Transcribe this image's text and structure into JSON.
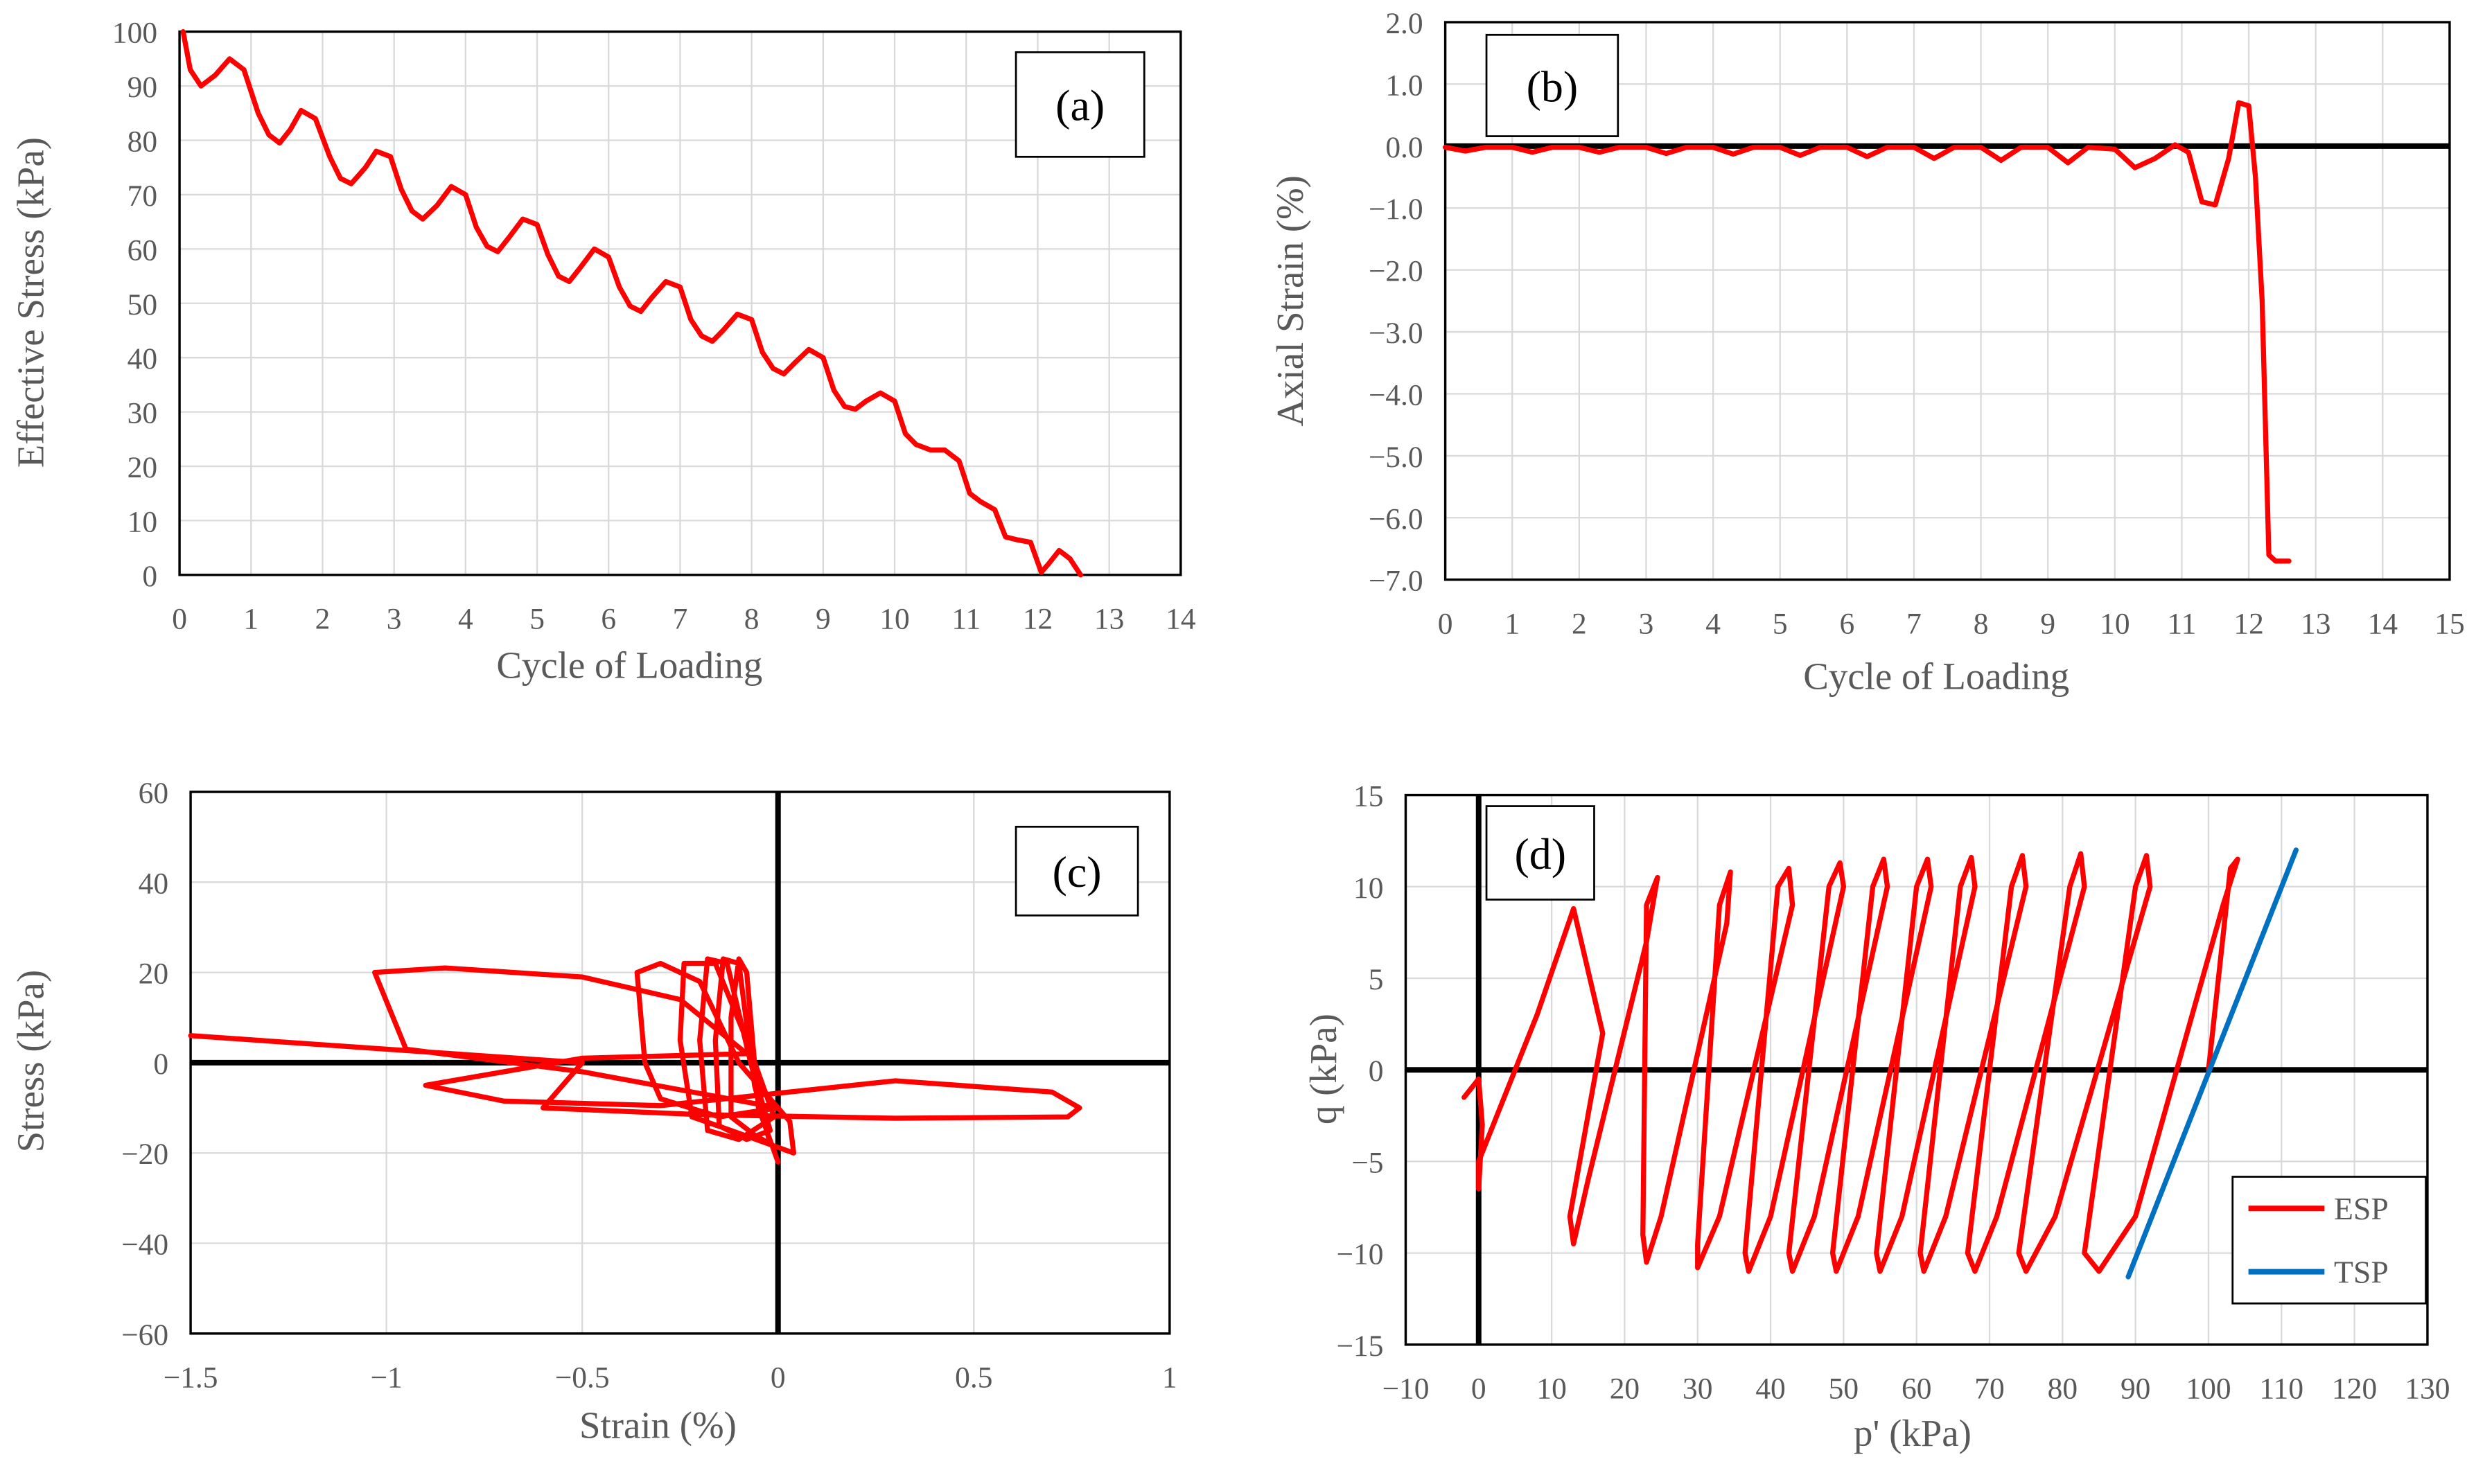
{
  "chart_data": [
    {
      "type": "line",
      "annotation": "(a)",
      "x_label": "Cycle of Loading",
      "y_label": "Effective Stress (kPa)",
      "color": "#ff0000",
      "grid": true,
      "zero_lines": false,
      "xlim": [
        0,
        14
      ],
      "xticks": [
        0,
        1,
        2,
        3,
        4,
        5,
        6,
        7,
        8,
        9,
        10,
        11,
        12,
        13,
        14
      ],
      "ylim": [
        0,
        100
      ],
      "yticks": [
        0,
        10,
        20,
        30,
        40,
        50,
        60,
        70,
        80,
        90,
        100
      ],
      "x": [
        0.05,
        0.15,
        0.3,
        0.5,
        0.7,
        0.9,
        1.1,
        1.25,
        1.4,
        1.55,
        1.7,
        1.9,
        2.1,
        2.25,
        2.4,
        2.6,
        2.75,
        2.95,
        3.1,
        3.25,
        3.4,
        3.6,
        3.8,
        4.0,
        4.15,
        4.3,
        4.45,
        4.6,
        4.8,
        5.0,
        5.15,
        5.3,
        5.45,
        5.6,
        5.8,
        6.0,
        6.15,
        6.3,
        6.45,
        6.6,
        6.8,
        7.0,
        7.15,
        7.3,
        7.45,
        7.6,
        7.8,
        8.0,
        8.15,
        8.3,
        8.45,
        8.6,
        8.8,
        9.0,
        9.15,
        9.3,
        9.45,
        9.6,
        9.8,
        10.0,
        10.15,
        10.3,
        10.5,
        10.7,
        10.9,
        11.05,
        11.2,
        11.4,
        11.55,
        11.7,
        11.9,
        12.05,
        12.15,
        12.3,
        12.45,
        12.6
      ],
      "values": [
        100,
        93,
        90,
        92,
        95,
        93,
        85,
        81,
        79.5,
        82,
        85.5,
        84,
        77,
        73,
        72,
        75,
        78,
        77,
        71,
        67,
        65.5,
        68,
        71.5,
        70,
        64,
        60.5,
        59.5,
        62,
        65.5,
        64.5,
        59,
        55,
        54,
        56.5,
        60,
        58.5,
        53,
        49.5,
        48.5,
        51,
        54,
        53,
        47,
        44,
        43,
        45,
        48,
        47,
        41,
        38,
        37,
        39,
        41.5,
        40,
        34,
        31,
        30.5,
        32,
        33.5,
        32,
        26,
        24,
        23,
        23,
        21,
        15,
        13.5,
        12,
        7,
        6.5,
        6,
        0.5,
        2,
        4.5,
        3,
        0
      ]
    },
    {
      "type": "line",
      "annotation": "(b)",
      "x_label": "Cycle of Loading",
      "y_label": "Axial Strain (%)",
      "color": "#ff0000",
      "grid": true,
      "zero_lines": true,
      "xlim": [
        0,
        15
      ],
      "xticks": [
        0,
        1,
        2,
        3,
        4,
        5,
        6,
        7,
        8,
        9,
        10,
        11,
        12,
        13,
        14,
        15
      ],
      "ylim": [
        -7,
        2
      ],
      "yticks": [
        {
          "value": -7,
          "label": "−7.0"
        },
        {
          "value": -6,
          "label": "−6.0"
        },
        {
          "value": -5,
          "label": "−5.0"
        },
        {
          "value": -4,
          "label": "−4.0"
        },
        {
          "value": -3,
          "label": "−3.0"
        },
        {
          "value": -2,
          "label": "−2.0"
        },
        {
          "value": -1,
          "label": "−1.0"
        },
        {
          "value": 0,
          "label": "0.0"
        },
        {
          "value": 1,
          "label": "1.0"
        },
        {
          "value": 2,
          "label": "2.0"
        }
      ],
      "x": [
        0,
        0.3,
        0.6,
        1.0,
        1.3,
        1.6,
        2.0,
        2.3,
        2.6,
        3.0,
        3.3,
        3.6,
        4.0,
        4.3,
        4.6,
        5.0,
        5.3,
        5.6,
        6.0,
        6.3,
        6.6,
        7.0,
        7.3,
        7.6,
        8.0,
        8.3,
        8.6,
        9.0,
        9.3,
        9.6,
        10.0,
        10.3,
        10.6,
        10.9,
        11.1,
        11.3,
        11.5,
        11.7,
        11.85,
        12.0,
        12.1,
        12.2,
        12.3,
        12.4,
        12.6
      ],
      "values": [
        -0.02,
        -0.08,
        -0.02,
        -0.02,
        -0.1,
        -0.02,
        -0.02,
        -0.1,
        -0.02,
        -0.02,
        -0.12,
        -0.02,
        -0.02,
        -0.13,
        -0.02,
        -0.02,
        -0.15,
        -0.02,
        -0.02,
        -0.17,
        -0.02,
        -0.02,
        -0.2,
        -0.02,
        -0.02,
        -0.23,
        -0.02,
        -0.02,
        -0.27,
        -0.02,
        -0.05,
        -0.35,
        -0.2,
        0.02,
        -0.1,
        -0.9,
        -0.95,
        -0.2,
        0.7,
        0.65,
        -0.5,
        -2.5,
        -6.6,
        -6.7,
        -6.7
      ]
    },
    {
      "type": "line",
      "annotation": "(c)",
      "x_label": "Strain (%)",
      "y_label": "Stress (kPa)",
      "color": "#ff0000",
      "grid": true,
      "zero_lines": true,
      "xlim": [
        -1.5,
        1
      ],
      "xticks": [
        {
          "value": -1.5,
          "label": "−1.5"
        },
        {
          "value": -1,
          "label": "−1"
        },
        {
          "value": -0.5,
          "label": "−0.5"
        },
        0,
        0.5,
        1
      ],
      "ylim": [
        -60,
        60
      ],
      "yticks": [
        {
          "value": -60,
          "label": "−60"
        },
        {
          "value": -40,
          "label": "−40"
        },
        {
          "value": -20,
          "label": "−20"
        },
        0,
        20,
        40,
        60
      ],
      "x": [
        0,
        -0.05,
        -0.08,
        -0.1,
        -0.12,
        -0.12,
        -0.06,
        -0.02,
        -0.06,
        -0.1,
        -0.14,
        -0.16,
        -0.15,
        -0.08,
        -0.02,
        -0.07,
        -0.13,
        -0.18,
        -0.2,
        -0.18,
        -0.1,
        -0.01,
        -0.08,
        -0.16,
        -0.24,
        -0.25,
        -0.22,
        -0.12,
        0.04,
        0.03,
        -0.1,
        -0.2,
        -0.3,
        -0.36,
        -0.34,
        -0.3,
        -0.15,
        0,
        -0.5,
        -0.95,
        -1.03,
        -0.85,
        -0.5,
        -0.25,
        -0.08,
        -0.5,
        -0.9,
        -0.7,
        -0.3,
        0.3,
        0.7,
        0.77,
        0.74,
        0.3,
        -0.2,
        -0.6,
        -0.5,
        -1.0,
        -1.5
      ],
      "values": [
        -22,
        -10,
        20,
        23,
        10,
        -12,
        -16,
        -18,
        -5,
        22,
        23,
        5,
        -14,
        -17,
        -15,
        0,
        22,
        23,
        5,
        -15,
        -17,
        -12,
        5,
        22,
        22,
        5,
        -12,
        -15,
        -20,
        -13,
        0,
        18,
        22,
        20,
        0,
        -8,
        -12,
        -10,
        -2,
        3,
        20,
        21,
        19,
        14,
        2,
        1,
        -5,
        -8.5,
        -9.5,
        -4,
        -6.5,
        -10,
        -12,
        -12.3,
        -11.5,
        -10,
        0,
        3,
        6
      ]
    },
    {
      "type": "line",
      "annotation": "(d)",
      "x_label": "p' (kPa)",
      "y_label": "q (kPa)",
      "grid": true,
      "zero_lines": true,
      "legend": "lower right",
      "xlim": [
        -10,
        130
      ],
      "xticks": [
        {
          "value": -10,
          "label": "−10"
        },
        0,
        10,
        20,
        30,
        40,
        50,
        60,
        70,
        80,
        90,
        100,
        110,
        120,
        130
      ],
      "ylim": [
        -15,
        15
      ],
      "yticks": [
        {
          "value": -15,
          "label": "−15"
        },
        {
          "value": -10,
          "label": "−10"
        },
        {
          "value": -5,
          "label": "−5"
        },
        0,
        5,
        10,
        15
      ],
      "series": [
        {
          "name": "ESP",
          "color": "#ff0000",
          "x": [
            100,
            103,
            104,
            102,
            90,
            85,
            83,
            90,
            91.5,
            92,
            79,
            75,
            74,
            81,
            82.5,
            83,
            71,
            68,
            67,
            73,
            74.5,
            75,
            64,
            61,
            60.5,
            66,
            67.5,
            68,
            58,
            55,
            54.5,
            60,
            61.5,
            62,
            52,
            49,
            48.5,
            54,
            55.5,
            56,
            46,
            43,
            42.5,
            48,
            49.5,
            50,
            40,
            37,
            36.5,
            41,
            42.5,
            43,
            33,
            30,
            30,
            33,
            34.5,
            34,
            25,
            23,
            22.5,
            23,
            24.5,
            23,
            15,
            13,
            12.5,
            17,
            13,
            8,
            0,
            0,
            0.5,
            0,
            -2
          ],
          "values": [
            0,
            11,
            11.5,
            9,
            -8,
            -11,
            -10,
            10,
            11.7,
            10,
            -8,
            -11,
            -10,
            10,
            11.8,
            10,
            -8,
            -11,
            -10,
            10,
            11.7,
            10,
            -8,
            -11,
            -10,
            10,
            11.6,
            10,
            -8,
            -11,
            -10,
            10,
            11.5,
            10,
            -8,
            -11,
            -10,
            10,
            11.5,
            10,
            -8,
            -11,
            -10,
            10,
            11.3,
            10,
            -8,
            -11,
            -10,
            10,
            11,
            9,
            -8,
            -10.8,
            -9.5,
            9,
            10.8,
            8,
            -8,
            -10.5,
            -9,
            9,
            10.5,
            7,
            -6,
            -9.5,
            -8,
            2,
            8.8,
            3,
            -5,
            -6.5,
            -3,
            -0.5,
            -1.5
          ]
        },
        {
          "name": "TSP",
          "color": "#0070c0",
          "x": [
            89,
            112
          ],
          "values": [
            -11.3,
            12
          ]
        }
      ]
    }
  ]
}
